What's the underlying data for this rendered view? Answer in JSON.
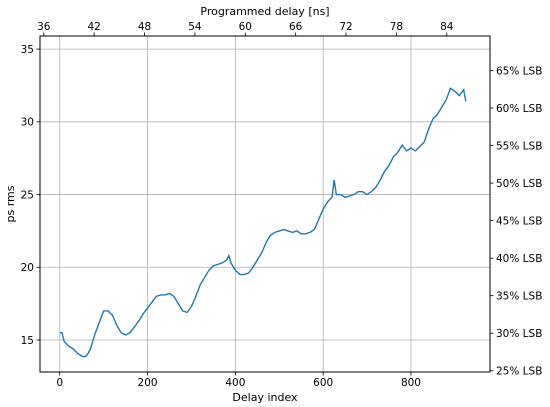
{
  "chart_data": {
    "type": "line",
    "title": "",
    "xlabel": "Delay index",
    "ylabel": "ps rms",
    "top_xlabel": "Programmed delay [ns]",
    "xlim": [
      -45,
      980
    ],
    "ylim": [
      12.8,
      35.9
    ],
    "top_xlim": [
      35.55,
      89.15
    ],
    "right_ylim": [
      24.83,
      69.6
    ],
    "x_ticks": [
      0,
      200,
      400,
      600,
      800
    ],
    "y_ticks": [
      15,
      20,
      25,
      30,
      35
    ],
    "top_x_ticks": [
      36,
      42,
      48,
      54,
      60,
      66,
      72,
      78,
      84
    ],
    "right_y_ticks": [
      25,
      30,
      35,
      40,
      45,
      50,
      55,
      60,
      65
    ],
    "right_tick_suffix": "% LSB",
    "grid": true,
    "line_color": "#1f77b4",
    "series": [
      {
        "x": [
          0,
          5,
          10,
          20,
          30,
          40,
          50,
          55,
          60,
          65,
          70,
          80,
          90,
          100,
          110,
          120,
          130,
          140,
          150,
          160,
          170,
          180,
          190,
          200,
          210,
          220,
          230,
          240,
          250,
          260,
          270,
          280,
          290,
          300,
          310,
          320,
          330,
          340,
          350,
          360,
          370,
          380,
          385,
          390,
          400,
          410,
          420,
          430,
          440,
          450,
          460,
          470,
          480,
          490,
          500,
          510,
          520,
          530,
          540,
          550,
          560,
          570,
          580,
          590,
          600,
          610,
          620,
          625,
          630,
          640,
          650,
          660,
          670,
          680,
          690,
          700,
          710,
          720,
          730,
          740,
          750,
          760,
          770,
          780,
          790,
          800,
          810,
          820,
          830,
          840,
          850,
          860,
          870,
          880,
          890,
          900,
          910,
          920,
          925
        ],
        "values": [
          15.5,
          15.5,
          14.9,
          14.6,
          14.4,
          14.1,
          13.9,
          13.85,
          13.9,
          14.1,
          14.4,
          15.4,
          16.2,
          17.0,
          17.0,
          16.7,
          16.0,
          15.5,
          15.35,
          15.5,
          15.9,
          16.3,
          16.8,
          17.2,
          17.6,
          18.0,
          18.1,
          18.1,
          18.2,
          18.0,
          17.5,
          17.0,
          16.9,
          17.3,
          18.0,
          18.8,
          19.3,
          19.8,
          20.1,
          20.2,
          20.3,
          20.5,
          20.8,
          20.3,
          19.8,
          19.5,
          19.5,
          19.6,
          20.0,
          20.5,
          21.0,
          21.7,
          22.2,
          22.4,
          22.5,
          22.6,
          22.5,
          22.4,
          22.5,
          22.3,
          22.3,
          22.4,
          22.6,
          23.3,
          24.0,
          24.5,
          24.8,
          26.0,
          25.0,
          25.0,
          24.8,
          24.9,
          25.0,
          25.2,
          25.2,
          25.0,
          25.2,
          25.5,
          26.0,
          26.6,
          27.0,
          27.6,
          27.9,
          28.4,
          28.0,
          28.2,
          28.0,
          28.3,
          28.6,
          29.5,
          30.2,
          30.5,
          31.0,
          31.5,
          32.3,
          32.1,
          31.8,
          32.2,
          31.4
        ]
      }
    ]
  }
}
